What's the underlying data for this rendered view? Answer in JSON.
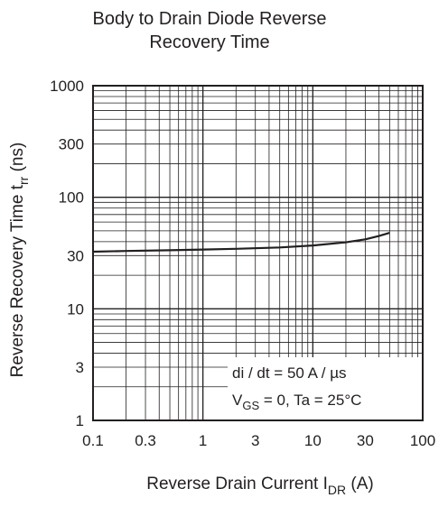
{
  "chart_data": {
    "type": "line",
    "title_lines": [
      "Body to Drain Diode Reverse",
      "Recovery Time"
    ],
    "xlabel": {
      "main": "Reverse Drain Current  I",
      "sub": "DR",
      "unit": "  (A)"
    },
    "ylabel": {
      "main": "Reverse Recovery Time  t",
      "sub": "rr",
      "unit": "  (ns)"
    },
    "x_scale": "log",
    "y_scale": "log",
    "xlim": [
      0.1,
      100
    ],
    "ylim": [
      1,
      1000
    ],
    "x_ticks": [
      {
        "value": 0.1,
        "label": "0.1"
      },
      {
        "value": 0.3,
        "label": "0.3"
      },
      {
        "value": 1,
        "label": "1"
      },
      {
        "value": 3,
        "label": "3"
      },
      {
        "value": 10,
        "label": "10"
      },
      {
        "value": 30,
        "label": "30"
      },
      {
        "value": 100,
        "label": "100"
      }
    ],
    "y_ticks": [
      {
        "value": 1,
        "label": "1"
      },
      {
        "value": 3,
        "label": "3"
      },
      {
        "value": 10,
        "label": "10"
      },
      {
        "value": 30,
        "label": "30"
      },
      {
        "value": 100,
        "label": "100"
      },
      {
        "value": 300,
        "label": "300"
      },
      {
        "value": 1000,
        "label": "1000"
      }
    ],
    "grid": true,
    "series": [
      {
        "x": [
          0.1,
          0.2,
          0.5,
          1,
          2,
          5,
          10,
          20,
          30,
          40,
          50
        ],
        "y": [
          32.5,
          33,
          33.5,
          34,
          34.5,
          35.5,
          37,
          39.5,
          42,
          45,
          48
        ]
      }
    ],
    "annotations": [
      {
        "lines": [
          {
            "parts": [
              {
                "text": "di / dt = 50 A / µs"
              }
            ]
          },
          {
            "parts": [
              {
                "text": "V"
              },
              {
                "text": "GS",
                "sub": true
              },
              {
                "text": " = 0, Ta = 25°C"
              }
            ]
          }
        ]
      }
    ]
  },
  "colors": {
    "ink": "#231f20",
    "background": "#ffffff"
  }
}
